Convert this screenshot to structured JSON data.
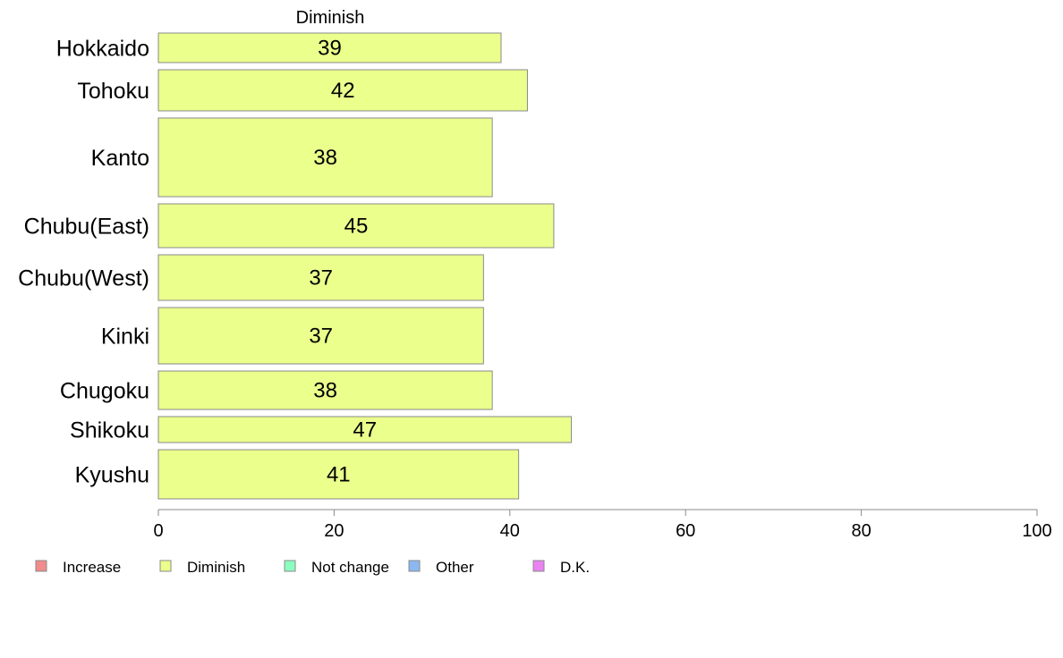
{
  "chart_data": {
    "type": "bar",
    "orientation": "horizontal",
    "panel_title": "Diminish",
    "categories": [
      "Hokkaido",
      "Tohoku",
      "Kanto",
      "Chubu(East)",
      "Chubu(West)",
      "Kinki",
      "Chugoku",
      "Shikoku",
      "Kyushu"
    ],
    "series": [
      {
        "name": "Diminish",
        "values": [
          39,
          42,
          38,
          45,
          37,
          37,
          38,
          47,
          41
        ]
      }
    ],
    "xlim": [
      0,
      100
    ],
    "xticks": [
      0,
      20,
      40,
      60,
      80,
      100
    ],
    "grid": false,
    "legend_position": "bottom-left",
    "legend": [
      {
        "label": "Increase",
        "color": "#f28b8b"
      },
      {
        "label": "Diminish",
        "color": "#ebff8c"
      },
      {
        "label": "Not change",
        "color": "#8cffc0"
      },
      {
        "label": "Other",
        "color": "#8cb8f2"
      },
      {
        "label": "D.K.",
        "color": "#ea82f2"
      }
    ],
    "bar_color": "#ebff8c"
  }
}
